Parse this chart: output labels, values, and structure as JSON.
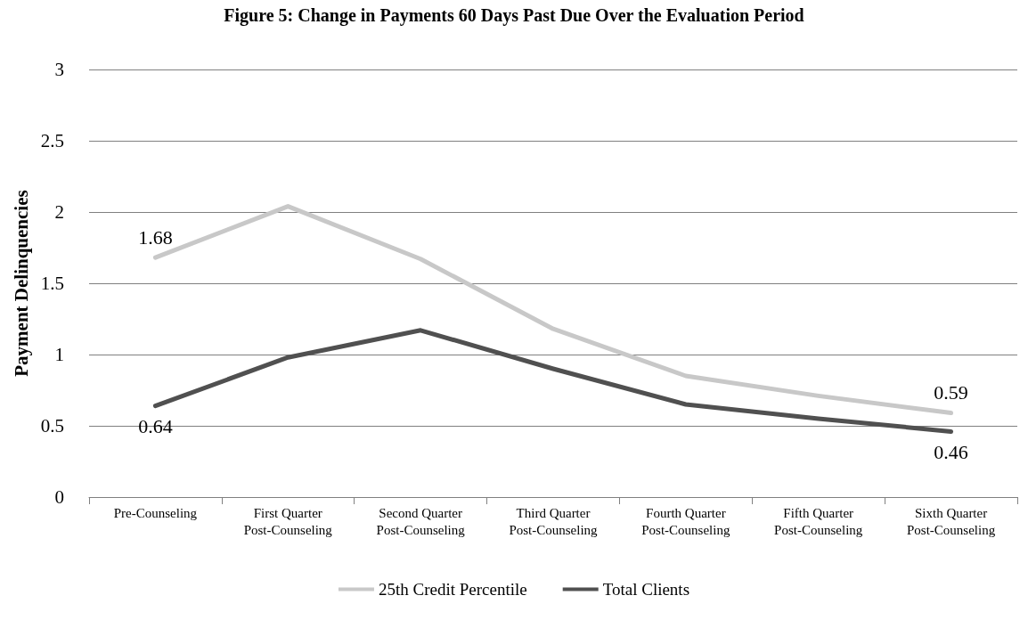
{
  "chart_data": {
    "type": "line",
    "title": "Figure 5: Change in Payments 60 Days Past Due Over the Evaluation Period",
    "ylabel": "Payment Delinquencies",
    "categories": [
      "Pre-Counseling",
      "First Quarter\nPost-Counseling",
      "Second Quarter\nPost-Counseling",
      "Third Quarter\nPost-Counseling",
      "Fourth Quarter\nPost-Counseling",
      "Fifth Quarter\nPost-Counseling",
      "Sixth Quarter\nPost-Counseling"
    ],
    "series": [
      {
        "name": "25th Credit Percentile",
        "color": "#c8c8c8",
        "values": [
          1.68,
          2.04,
          1.67,
          1.18,
          0.85,
          0.71,
          0.59
        ],
        "value_labels": [
          "1.68",
          null,
          null,
          null,
          null,
          null,
          "0.59"
        ]
      },
      {
        "name": "Total Clients",
        "color": "#505050",
        "values": [
          0.64,
          0.98,
          1.17,
          0.9,
          0.65,
          0.55,
          0.46
        ],
        "value_labels": [
          "0.64",
          null,
          null,
          null,
          null,
          null,
          "0.46"
        ]
      }
    ],
    "ylim": [
      0,
      3
    ],
    "yticks": [
      0,
      0.5,
      1,
      1.5,
      2,
      2.5,
      3
    ],
    "grid": "y",
    "legend": "bottom",
    "marker": "none",
    "line_style": "solid"
  }
}
